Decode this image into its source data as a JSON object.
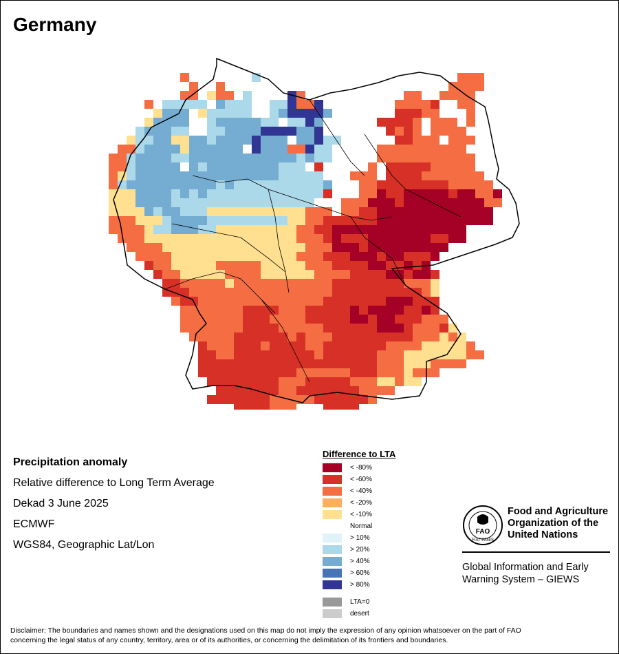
{
  "title": "Germany",
  "info": {
    "heading": "Precipitation anomaly",
    "line1": "Relative difference to Long Term Average",
    "line2": "Dekad 3 June 2025",
    "line3": "ECMWF",
    "line4": "WGS84, Geographic Lat/Lon"
  },
  "legend": {
    "title": "Difference to LTA",
    "classes": [
      {
        "label": "< -80%",
        "color": "#a50026"
      },
      {
        "label": "< -60%",
        "color": "#d73027"
      },
      {
        "label": "< -40%",
        "color": "#f46d43"
      },
      {
        "label": "< -20%",
        "color": "#fdae61"
      },
      {
        "label": "< -10%",
        "color": "#fee090"
      },
      {
        "label": "Normal",
        "color": "#ffffff"
      },
      {
        "label": "> 10%",
        "color": "#e0f3f8"
      },
      {
        "label": "> 20%",
        "color": "#abd9e9"
      },
      {
        "label": "> 40%",
        "color": "#74add1"
      },
      {
        "label": "> 60%",
        "color": "#4575b4"
      },
      {
        "label": "> 80%",
        "color": "#313695"
      }
    ],
    "extra": [
      {
        "label": "LTA=0",
        "color": "#999999"
      },
      {
        "label": "desert",
        "color": "#cccccc"
      }
    ]
  },
  "fao": {
    "logo_text": "FAO",
    "logo_motto": "FIAT PANIS",
    "name_line1": "Food and Agriculture",
    "name_line2": "Organization of the",
    "name_line3": "United Nations",
    "giews_line1": "Global Information and Early",
    "giews_line2": "Warning System – GIEWS"
  },
  "disclaimer_line1": "Disclaimer: The boundaries and names shown and the designations used on this map do not imply the expression of any opinion whatsoever on the part of FAO",
  "disclaimer_line2": "concerning the legal status of any country, territory, area or of its authorities, or concerning the delimitation of its frontiers and boundaries.",
  "grid": {
    "rows": [
      "...........................................",
      "...........................................",
      "........4.......6......................444.",
      ".........4..4.........................4444.",
      "........44.544.6....a4...........44..4444..",
      "....4.66666.7666..66a44a........44443..44..",
      ".....5777.566666..67aaaa7.......33344...4..",
      "....57777..67777766.66a7......33334.444.4..",
      "...677766..667777aaaa77a.......3434.4444...",
      "..56677557767777a777.77a66......33444.444..",
      ".44677775777777.a77744a66.....4444444444...",
      "4467777667777777777776766.....44444444444.",
      "44677777.7677777777666.3.....4.3333344444..",
      "456777777777777777766666...444.33334444444..",
      "4677777777776766666666667...443333333344444..",
      "5557777676766666666666663...4423322222322442.",
      "55577776666666666666666...444222322222222244.",
      "5555767766655555555555444.44332222222222222.",
      "4445556777766666666655443333332222222222222.",
      "4444566777665555555554433222222222222222.....",
      ".444555555555555555554443233322222223322.....",
      "..444455555555555555554442223222222222.......",
      "...4444555555555555554443332223223332........",
      "....34455555444445555544433332233232.........",
      ".....34455555444455555544443333223223........",
      "......3344444544444444444333333334445........",
      "......3334444444444444444333333333345........",
      ".......433444444444444443333333222333........",
      "........44444443333444333332322223323........",
      "........444444433344443333322322333444.......",
      "........4444444333344444333333222344435......",
      ".........4444433333343444333333333444545.....",
      "..........3444333433334433333334444555554....",
      "..........33443333333334333333444555555544...",
      "..........333333333333333333334445554444.....",
      "..........333333333334444443334445444........",
      "...........333333334443333344455455..........",
      "............33333334433333334444.............",
      "...........3333333444443333334...............",
      "..............3333444...3333.................",
      "..............................................",
      "..............................................",
      "..............................................",
      "..............................................",
      "..............................................",
      "..............................................",
      "..............................................",
      "..............................................",
      "..............................................",
      ".............................................."
    ]
  }
}
